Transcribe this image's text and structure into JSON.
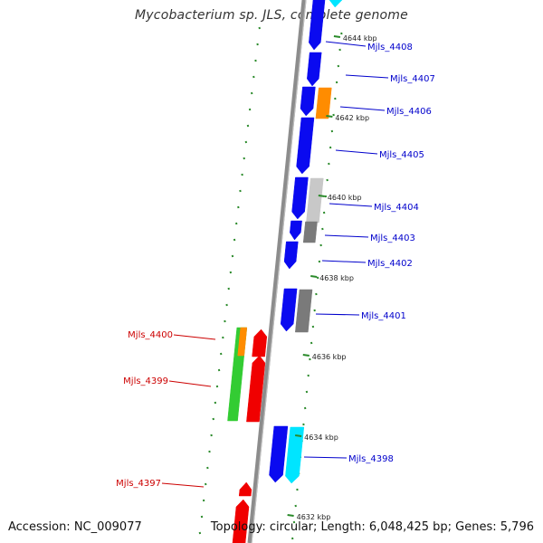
{
  "title": "Mycobacterium sp. JLS, complete genome",
  "footer": {
    "accession": "Accession: NC_009077",
    "summary": "Topology: circular; Length: 6,048,425 bp; Genes: 5,796"
  },
  "colors": {
    "blue": "#0a0af0",
    "red": "#f00000",
    "green": "#33cc33",
    "orange": "#ff8c00",
    "cyan": "#00e5ff",
    "light_gray": "#c8c8c8",
    "dark_gray": "#7a7a7a",
    "backbone": "#8c8c8c",
    "tick": "#2a8a2a",
    "right_label": "#0000cc",
    "left_label": "#cc0000"
  },
  "ticks": [
    "4644 kbp",
    "4642 kbp",
    "4640 kbp",
    "4638 kbp",
    "4636 kbp",
    "4634 kbp",
    "4632 kbp"
  ],
  "right_labels": [
    "Mjls_4408",
    "Mjls_4407",
    "Mjls_4406",
    "Mjls_4405",
    "Mjls_4404",
    "Mjls_4403",
    "Mjls_4402",
    "Mjls_4401",
    "Mjls_4398"
  ],
  "left_labels": [
    "Mjls_4400",
    "Mjls_4399",
    "Mjls_4397"
  ]
}
